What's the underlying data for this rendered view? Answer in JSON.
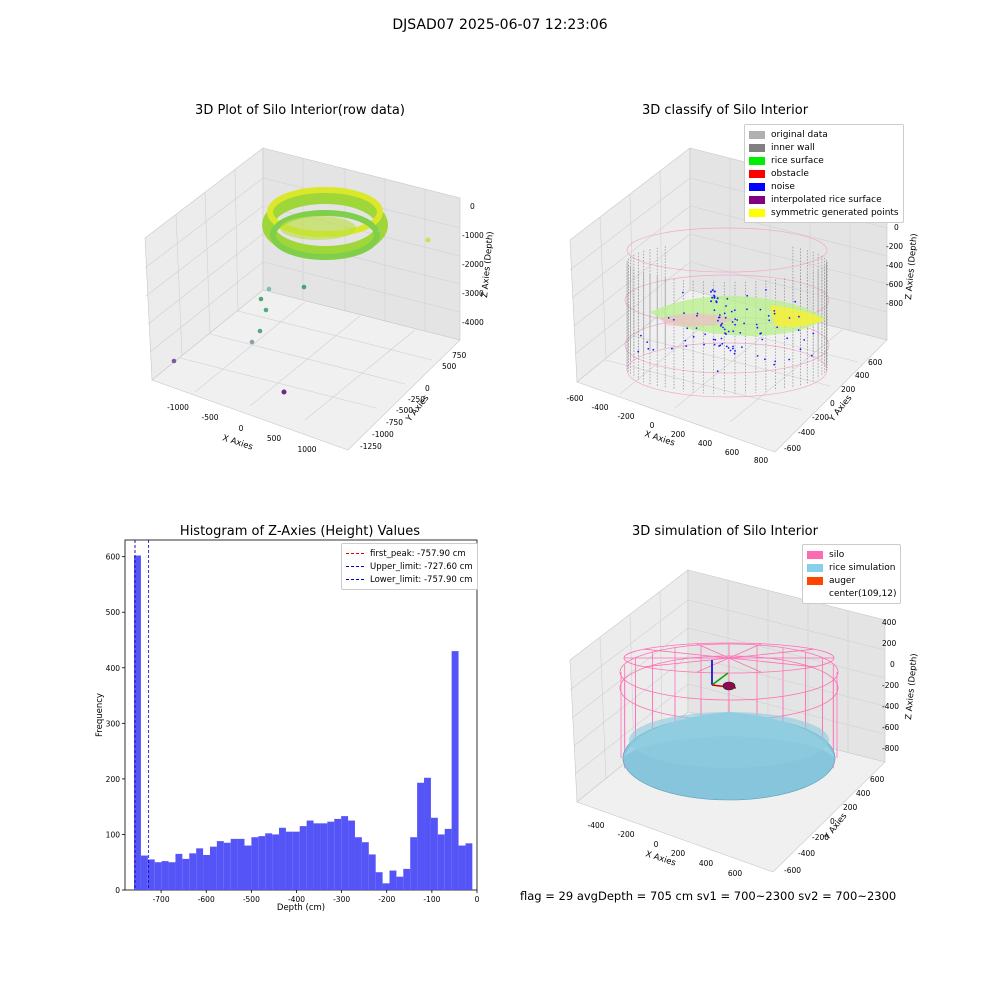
{
  "suptitle": "DJSAD07 2025-06-07 12:23:06",
  "colors": {
    "hist_bar": "#5050f7",
    "first_peak": "#e00000",
    "limit_line": "#0000cc",
    "silo": "#ff69b4",
    "rice": "#87ceeb",
    "auger": "#ff4500",
    "inner_wall": "#808080",
    "original": "#b0b0b0",
    "rice_surface": "#00ee00",
    "obstacle": "#ff0000",
    "noise": "#0000ff",
    "interp": "#800080",
    "sym": "#ffff00"
  },
  "plot1": {
    "title": "3D Plot of Silo Interior(row data)",
    "xlabel": "X Axies",
    "ylabel": "Y Axies",
    "zlabel": "Z Axies (Depth)",
    "xticks": [
      "-1000",
      "-500",
      "0",
      "500",
      "1000"
    ],
    "yticks": [
      "750",
      "500",
      "250",
      "0",
      "-250",
      "-500",
      "-750",
      "-1000",
      "-1250"
    ],
    "zticks": [
      "0",
      "-1000",
      "-2000",
      "-3000",
      "-4000"
    ]
  },
  "plot2": {
    "title": "3D classify of Silo Interior",
    "xlabel": "X Axies",
    "ylabel": "Y Axies",
    "zlabel": "Z Axies (Depth)",
    "xticks": [
      "-600",
      "-400",
      "-200",
      "0",
      "200",
      "400",
      "600",
      "800"
    ],
    "yticks": [
      "600",
      "400",
      "200",
      "0",
      "-200",
      "-400",
      "-600"
    ],
    "zticks": [
      "200",
      "0",
      "-200",
      "-400",
      "-600",
      "-800"
    ],
    "legend": [
      {
        "label": "original data",
        "color": "#b0b0b0"
      },
      {
        "label": "inner wall",
        "color": "#808080"
      },
      {
        "label": "rice surface",
        "color": "#00ee00"
      },
      {
        "label": "obstacle",
        "color": "#ff0000"
      },
      {
        "label": "noise",
        "color": "#0000ff"
      },
      {
        "label": "interpolated rice surface",
        "color": "#800080"
      },
      {
        "label": "symmetric generated points",
        "color": "#ffff00"
      }
    ]
  },
  "plot4": {
    "title": "3D simulation of Silo Interior",
    "xlabel": "X Axies",
    "ylabel": "Y Axies",
    "zlabel": "Z Axies (Depth)",
    "xticks": [
      "-400",
      "-200",
      "0",
      "200",
      "400",
      "600"
    ],
    "yticks": [
      "600",
      "400",
      "200",
      "0",
      "-200",
      "-400",
      "-600"
    ],
    "zticks": [
      "400",
      "200",
      "0",
      "-200",
      "-400",
      "-600",
      "-800"
    ],
    "legend": [
      {
        "label": "silo",
        "color": "#ff69b4"
      },
      {
        "label": "rice simulation",
        "color": "#87ceeb"
      },
      {
        "label": "auger",
        "color": "#ff4500"
      },
      {
        "label": "center(109,12)",
        "color": "transparent"
      }
    ]
  },
  "footer": "flag = 29   avgDepth = 705 cm   sv1 = 700~2300   sv2 = 700~2300",
  "chart_data": {
    "type": "bar",
    "title": "Histogram of Z-Axies (Height) Values",
    "xlabel": "Depth (cm)",
    "ylabel": "Frequency",
    "xlim": [
      -780,
      0
    ],
    "ylim": [
      0,
      630
    ],
    "xticks": [
      -700,
      -600,
      -500,
      -400,
      -300,
      -200,
      -100,
      0
    ],
    "yticks": [
      0,
      100,
      200,
      300,
      400,
      500,
      600
    ],
    "bin_start": -760,
    "bin_width": 15.3,
    "values": [
      602,
      62,
      55,
      50,
      52,
      50,
      65,
      56,
      66,
      75,
      63,
      78,
      88,
      85,
      92,
      92,
      80,
      95,
      97,
      102,
      100,
      112,
      105,
      105,
      115,
      125,
      120,
      120,
      123,
      128,
      133,
      125,
      95,
      86,
      64,
      32,
      12,
      35,
      24,
      38,
      95,
      193,
      202,
      130,
      100,
      110,
      430,
      80,
      84
    ],
    "vlines": [
      {
        "label": "first_peak: -757.90 cm",
        "x": -757.9,
        "color": "#e00000"
      },
      {
        "label": "Upper_limit: -727.60 cm",
        "x": -727.6,
        "color": "#0000cc"
      },
      {
        "label": "Lower_limit: -757.90 cm",
        "x": -757.9,
        "color": "#0000cc"
      }
    ]
  }
}
